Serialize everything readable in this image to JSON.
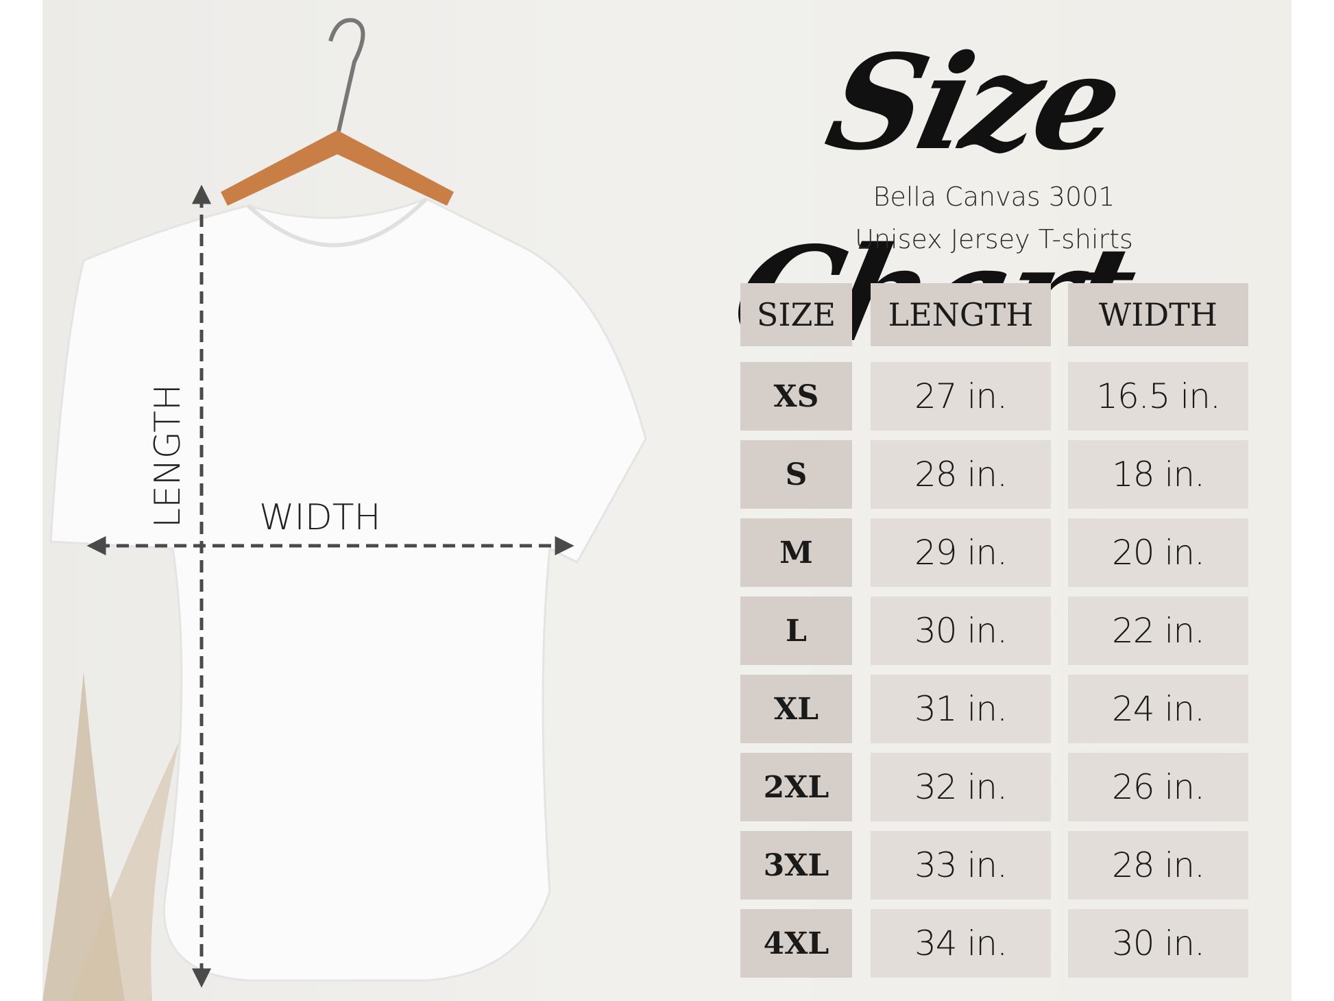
{
  "title": "Size Chart",
  "subtitle": [
    "Bella Canvas 3001",
    "Unisex Jersey T-shirts"
  ],
  "diagram_labels": {
    "length": "LENGTH",
    "width": "WIDTH"
  },
  "colors": {
    "header_bg": "#d6cec8",
    "cell_bg": "#e2ddd8",
    "background": "#efeee9",
    "arrow": "#4a4a4a"
  },
  "table": {
    "headers": [
      "SIZE",
      "LENGTH",
      "WIDTH"
    ],
    "rows": [
      {
        "size": "XS",
        "length": "27 in.",
        "width": "16.5 in."
      },
      {
        "size": "S",
        "length": "28 in.",
        "width": "18 in."
      },
      {
        "size": "M",
        "length": "29 in.",
        "width": "20 in."
      },
      {
        "size": "L",
        "length": "30 in.",
        "width": "22 in."
      },
      {
        "size": "XL",
        "length": "31 in.",
        "width": "24 in."
      },
      {
        "size": "2XL",
        "length": "32 in.",
        "width": "26 in."
      },
      {
        "size": "3XL",
        "length": "33 in.",
        "width": "28 in."
      },
      {
        "size": "4XL",
        "length": "34 in.",
        "width": "30 in."
      }
    ]
  }
}
